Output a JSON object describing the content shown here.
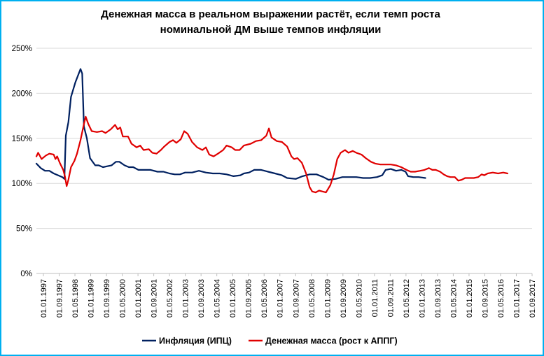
{
  "chart_data": {
    "type": "line",
    "title_lines": [
      "Денежная масса в реальном выражении растёт, если темп роста",
      "номинальной ДМ выше темпов инфляции"
    ],
    "xlabel": "",
    "ylabel": "",
    "ylim": [
      0,
      250
    ],
    "yticks": [
      "0%",
      "50%",
      "100%",
      "150%",
      "200%",
      "250%"
    ],
    "y_tick_values": [
      0,
      50,
      100,
      150,
      200,
      250
    ],
    "x_tick_labels": [
      "01.01.1997",
      "01.09.1997",
      "01.05.1998",
      "01.01.1999",
      "01.09.1999",
      "01.05.2000",
      "01.01.2001",
      "01.09.2001",
      "01.05.2002",
      "01.01.2003",
      "01.09.2003",
      "01.05.2004",
      "01.01.2005",
      "01.09.2005",
      "01.05.2006",
      "01.01.2007",
      "01.09.2007",
      "01.05.2008",
      "01.01.2009",
      "01.09.2009",
      "01.05.2010",
      "01.01.2011",
      "01.09.2011",
      "01.05.2012",
      "01.01.2013",
      "01.09.2013",
      "01.05.2014",
      "01.01.2015",
      "01.09.2015",
      "01.05.2016",
      "01.01.2017",
      "01.09.2017"
    ],
    "grid": "horizontal",
    "legend_position": "bottom",
    "series": [
      {
        "name": "Инфляция (ИПЦ)",
        "color": "#002060",
        "points": [
          [
            1997.0,
            122
          ],
          [
            1997.25,
            117
          ],
          [
            1997.5,
            114
          ],
          [
            1997.75,
            114
          ],
          [
            1998.0,
            111
          ],
          [
            1998.25,
            109
          ],
          [
            1998.5,
            107
          ],
          [
            1998.62,
            105
          ],
          [
            1998.7,
            153
          ],
          [
            1998.85,
            168
          ],
          [
            1999.0,
            196
          ],
          [
            1999.25,
            212
          ],
          [
            1999.45,
            222
          ],
          [
            1999.55,
            227
          ],
          [
            1999.65,
            222
          ],
          [
            1999.75,
            163
          ],
          [
            1999.92,
            150
          ],
          [
            2000.1,
            128
          ],
          [
            2000.4,
            120
          ],
          [
            2000.6,
            120
          ],
          [
            2000.85,
            118
          ],
          [
            2001.1,
            119
          ],
          [
            2001.35,
            120
          ],
          [
            2001.6,
            124
          ],
          [
            2001.8,
            124
          ],
          [
            2002.1,
            120
          ],
          [
            2002.35,
            118
          ],
          [
            2002.6,
            118
          ],
          [
            2002.9,
            115
          ],
          [
            2003.2,
            115
          ],
          [
            2003.6,
            115
          ],
          [
            2004.0,
            113
          ],
          [
            2004.35,
            113
          ],
          [
            2004.7,
            111
          ],
          [
            2005.0,
            110
          ],
          [
            2005.3,
            110
          ],
          [
            2005.6,
            112
          ],
          [
            2006.0,
            112
          ],
          [
            2006.4,
            114
          ],
          [
            2006.8,
            112
          ],
          [
            2007.2,
            111
          ],
          [
            2007.6,
            111
          ],
          [
            2008.0,
            110
          ],
          [
            2008.4,
            108
          ],
          [
            2008.8,
            109
          ],
          [
            2009.0,
            111
          ],
          [
            2009.3,
            112
          ],
          [
            2009.6,
            115
          ],
          [
            2010.0,
            115
          ],
          [
            2010.4,
            113
          ],
          [
            2010.8,
            111
          ],
          [
            2011.2,
            109
          ],
          [
            2011.5,
            106
          ],
          [
            2012.0,
            105
          ],
          [
            2012.4,
            108
          ],
          [
            2012.8,
            110
          ],
          [
            2013.2,
            110
          ],
          [
            2013.6,
            107
          ],
          [
            2013.9,
            104
          ],
          [
            2014.3,
            105
          ],
          [
            2014.7,
            107
          ],
          [
            2015.1,
            107
          ],
          [
            2015.5,
            107
          ],
          [
            2015.9,
            106
          ],
          [
            2016.3,
            106
          ],
          [
            2016.7,
            107
          ],
          [
            2017.0,
            109
          ],
          [
            2017.2,
            115
          ],
          [
            2017.5,
            116
          ],
          [
            2017.8,
            114
          ],
          [
            2018.1,
            115
          ],
          [
            2018.35,
            113
          ],
          [
            2018.5,
            108
          ],
          [
            2018.8,
            107
          ],
          [
            2019.1,
            107
          ],
          [
            2019.5,
            106
          ]
        ]
      },
      {
        "name": "Денежная масса (рост к АППГ)",
        "color": "#e00000",
        "points": [
          [
            1997.0,
            130
          ],
          [
            1997.1,
            134
          ],
          [
            1997.3,
            127
          ],
          [
            1997.55,
            131
          ],
          [
            1997.75,
            133
          ],
          [
            1998.0,
            132
          ],
          [
            1998.1,
            127
          ],
          [
            1998.2,
            130
          ],
          [
            1998.35,
            123
          ],
          [
            1998.55,
            115
          ],
          [
            1998.65,
            108
          ],
          [
            1998.75,
            97
          ],
          [
            1998.85,
            104
          ],
          [
            1999.0,
            118
          ],
          [
            1999.2,
            125
          ],
          [
            1999.35,
            133
          ],
          [
            1999.55,
            148
          ],
          [
            1999.75,
            166
          ],
          [
            1999.85,
            174
          ],
          [
            2000.0,
            166
          ],
          [
            2000.2,
            158
          ],
          [
            2000.5,
            157
          ],
          [
            2000.8,
            158
          ],
          [
            2001.0,
            156
          ],
          [
            2001.3,
            160
          ],
          [
            2001.55,
            165
          ],
          [
            2001.7,
            160
          ],
          [
            2001.85,
            162
          ],
          [
            2002.0,
            152
          ],
          [
            2002.3,
            152
          ],
          [
            2002.5,
            144
          ],
          [
            2002.8,
            140
          ],
          [
            2003.0,
            142
          ],
          [
            2003.2,
            137
          ],
          [
            2003.5,
            138
          ],
          [
            2003.7,
            134
          ],
          [
            2003.95,
            133
          ],
          [
            2004.2,
            137
          ],
          [
            2004.4,
            141
          ],
          [
            2004.7,
            146
          ],
          [
            2004.9,
            148
          ],
          [
            2005.1,
            145
          ],
          [
            2005.35,
            149
          ],
          [
            2005.55,
            158
          ],
          [
            2005.75,
            155
          ],
          [
            2006.0,
            146
          ],
          [
            2006.3,
            140
          ],
          [
            2006.6,
            137
          ],
          [
            2006.8,
            140
          ],
          [
            2007.0,
            132
          ],
          [
            2007.25,
            130
          ],
          [
            2007.5,
            133
          ],
          [
            2007.8,
            137
          ],
          [
            2008.0,
            142
          ],
          [
            2008.3,
            140
          ],
          [
            2008.5,
            137
          ],
          [
            2008.75,
            137
          ],
          [
            2009.0,
            142
          ],
          [
            2009.4,
            144
          ],
          [
            2009.7,
            147
          ],
          [
            2010.0,
            148
          ],
          [
            2010.3,
            153
          ],
          [
            2010.45,
            161
          ],
          [
            2010.6,
            151
          ],
          [
            2010.9,
            147
          ],
          [
            2011.2,
            146
          ],
          [
            2011.5,
            141
          ],
          [
            2011.75,
            130
          ],
          [
            2011.9,
            127
          ],
          [
            2012.1,
            128
          ],
          [
            2012.35,
            123
          ],
          [
            2012.6,
            111
          ],
          [
            2012.8,
            96
          ],
          [
            2012.95,
            91
          ],
          [
            2013.15,
            90
          ],
          [
            2013.35,
            92
          ],
          [
            2013.55,
            91
          ],
          [
            2013.75,
            90
          ],
          [
            2014.0,
            98
          ],
          [
            2014.2,
            110
          ],
          [
            2014.4,
            127
          ],
          [
            2014.6,
            134
          ],
          [
            2014.85,
            137
          ],
          [
            2015.05,
            134
          ],
          [
            2015.3,
            136
          ],
          [
            2015.5,
            134
          ],
          [
            2015.8,
            132
          ],
          [
            2016.05,
            128
          ],
          [
            2016.35,
            124
          ],
          [
            2016.6,
            122
          ],
          [
            2016.9,
            121
          ],
          [
            2017.2,
            121
          ],
          [
            2017.5,
            121
          ],
          [
            2017.8,
            120
          ],
          [
            2018.1,
            118
          ],
          [
            2018.4,
            115
          ],
          [
            2018.65,
            113
          ],
          [
            2018.9,
            113
          ],
          [
            2019.2,
            114
          ],
          [
            2019.45,
            115
          ],
          [
            2019.7,
            117
          ],
          [
            2019.9,
            115
          ],
          [
            2020.1,
            115
          ],
          [
            2020.35,
            113
          ],
          [
            2020.55,
            110
          ],
          [
            2020.75,
            108
          ],
          [
            2020.95,
            107
          ],
          [
            2021.2,
            107
          ],
          [
            2021.4,
            103
          ],
          [
            2021.6,
            104
          ],
          [
            2021.8,
            106
          ],
          [
            2022.05,
            106
          ],
          [
            2022.3,
            106
          ],
          [
            2022.55,
            107
          ],
          [
            2022.75,
            110
          ],
          [
            2022.9,
            109
          ],
          [
            2023.1,
            111
          ],
          [
            2023.4,
            112
          ],
          [
            2023.7,
            111
          ],
          [
            2024.0,
            112
          ],
          [
            2024.25,
            111
          ]
        ]
      }
    ],
    "x_range": [
      1997.0,
      2025.67
    ]
  }
}
